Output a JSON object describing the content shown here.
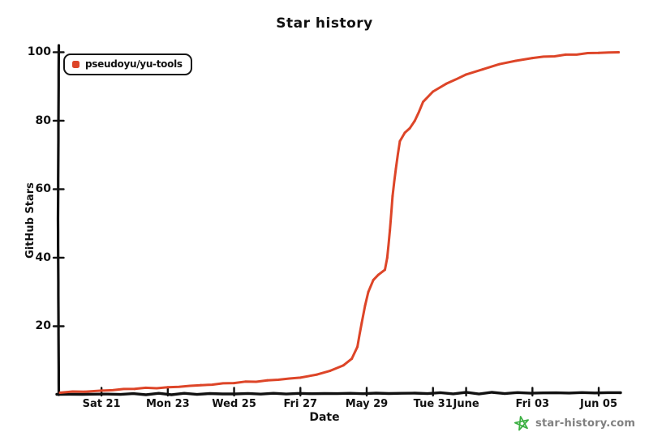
{
  "title": "Star history",
  "legend": {
    "label": "pseudoyu/yu-tools"
  },
  "axes": {
    "x_title": "Date",
    "y_title": "GitHub Stars"
  },
  "watermark": {
    "text": "star-history.com"
  },
  "colors": {
    "series": "#dd4528",
    "axis": "#111111",
    "text": "#111111",
    "watermark_text": "#808080",
    "logo_green": "#3cb043",
    "background": "#ffffff"
  },
  "chart_data": {
    "type": "line",
    "title": "Star history",
    "xlabel": "Date",
    "ylabel": "GitHub Stars",
    "grid": false,
    "legend_position": "top-left",
    "x_tick_labels": [
      "Sat 21",
      "Mon 23",
      "Wed 25",
      "Fri 27",
      "May 29",
      "Tue 31",
      "June",
      "Fri 03",
      "Jun 05"
    ],
    "x_tick_days_from_may20": [
      1,
      3,
      5,
      7,
      9,
      11,
      12,
      14,
      16
    ],
    "y_ticks": [
      20,
      40,
      60,
      80,
      100
    ],
    "xlim_days": [
      -0.3,
      16.66
    ],
    "ylim": [
      0,
      102
    ],
    "series": [
      {
        "name": "pseudoyu/yu-tools",
        "color": "#dd4528",
        "points_day_stars": [
          [
            -0.25,
            0.6
          ],
          [
            0.5,
            0.9
          ],
          [
            1,
            1.2
          ],
          [
            2,
            1.7
          ],
          [
            3,
            2.2
          ],
          [
            4,
            2.8
          ],
          [
            5,
            3.4
          ],
          [
            6,
            4.2
          ],
          [
            7,
            5.0
          ],
          [
            7.5,
            5.9
          ],
          [
            7.9,
            7.0
          ],
          [
            8.3,
            8.6
          ],
          [
            8.55,
            10.5
          ],
          [
            8.72,
            14
          ],
          [
            8.85,
            21
          ],
          [
            8.95,
            26
          ],
          [
            9.05,
            30
          ],
          [
            9.2,
            33.5
          ],
          [
            9.35,
            35
          ],
          [
            9.55,
            36.5
          ],
          [
            9.62,
            40
          ],
          [
            9.7,
            48
          ],
          [
            9.78,
            58
          ],
          [
            9.88,
            66
          ],
          [
            10.0,
            74
          ],
          [
            10.15,
            76.5
          ],
          [
            10.3,
            77.8
          ],
          [
            10.45,
            80
          ],
          [
            10.7,
            85.5
          ],
          [
            11.0,
            88.5
          ],
          [
            11.4,
            90.8
          ],
          [
            12.0,
            93.5
          ],
          [
            12.5,
            95
          ],
          [
            13.0,
            96.5
          ],
          [
            13.5,
            97.5
          ],
          [
            14.0,
            98.3
          ],
          [
            15.0,
            99.3
          ],
          [
            16.0,
            99.8
          ],
          [
            16.6,
            100
          ]
        ]
      }
    ]
  }
}
